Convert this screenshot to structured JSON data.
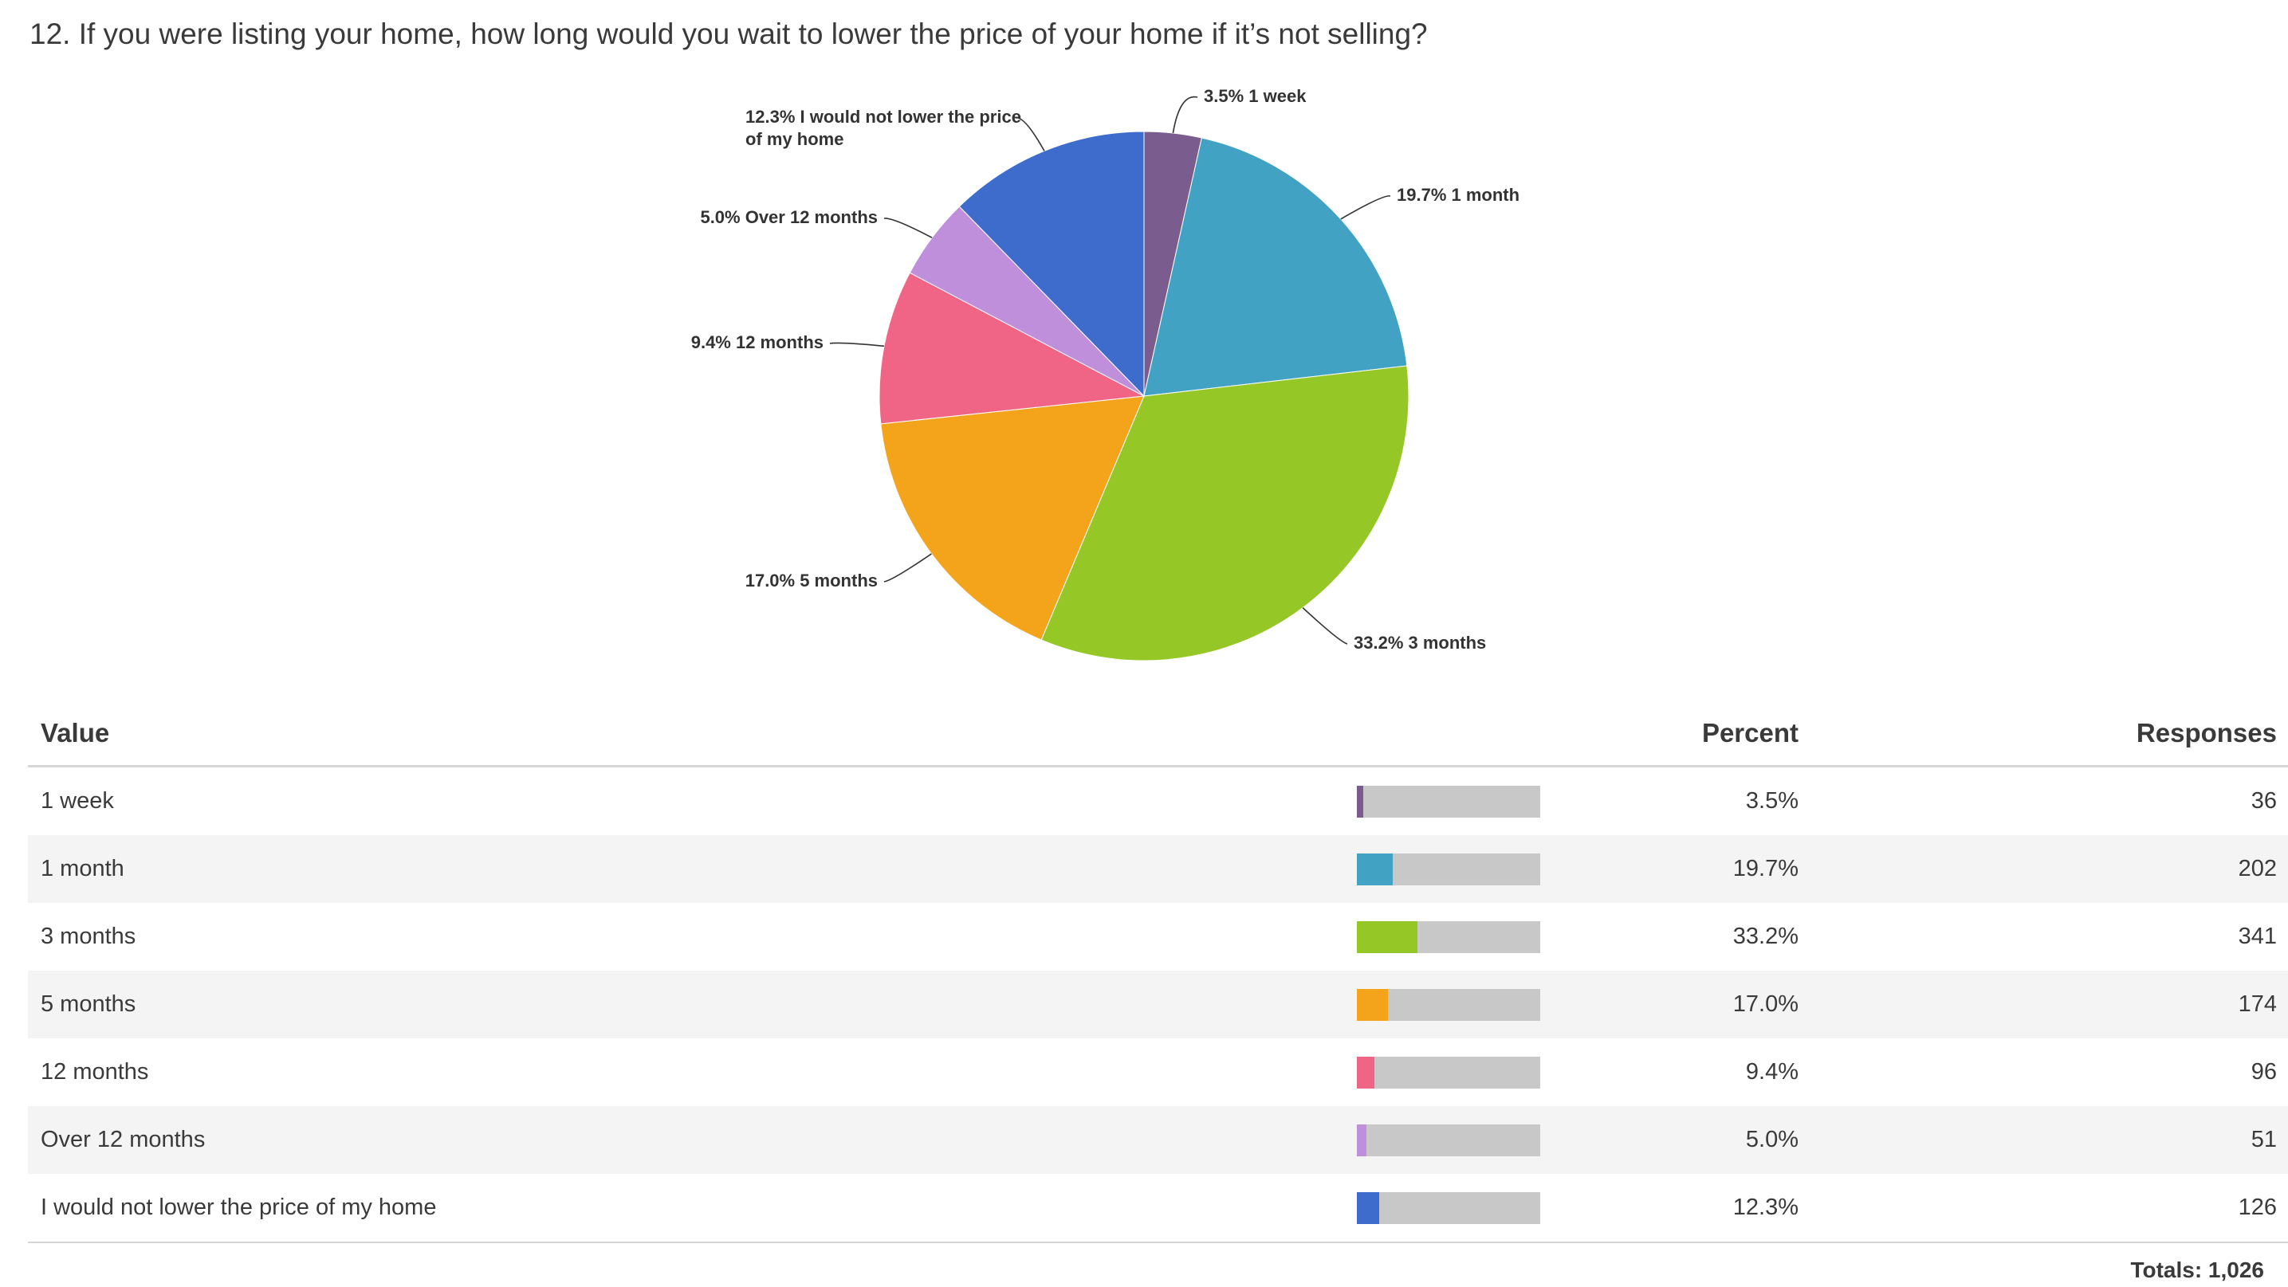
{
  "question": "12. If you were listing your home, how long would you wait to lower the price of your home if it’s not selling?",
  "chart_data": {
    "type": "pie",
    "title": "12. If you were listing your home, how long would you wait to lower the price of your home if it’s not selling?",
    "slices": [
      {
        "label": "1 week",
        "percent": 3.5,
        "responses": 36,
        "color": "#7a5d8e",
        "label_text": "3.5% 1 week"
      },
      {
        "label": "1 month",
        "percent": 19.7,
        "responses": 202,
        "color": "#41a2c4",
        "label_text": "19.7% 1 month"
      },
      {
        "label": "3 months",
        "percent": 33.2,
        "responses": 341,
        "color": "#95c826",
        "label_text": "33.2% 3 months"
      },
      {
        "label": "5 months",
        "percent": 17.0,
        "responses": 174,
        "color": "#f4a41b",
        "label_text": "17.0% 5 months"
      },
      {
        "label": "12 months",
        "percent": 9.4,
        "responses": 96,
        "color": "#f06586",
        "label_text": "9.4% 12 months"
      },
      {
        "label": "Over 12 months",
        "percent": 5.0,
        "responses": 51,
        "color": "#bf8fdb",
        "label_text": "5.0% Over 12 months"
      },
      {
        "label": "I would not lower the price of my home",
        "percent": 12.3,
        "responses": 126,
        "color": "#3d6ccc",
        "label_lines": [
          "12.3% I would not lower the price",
          "of my home"
        ]
      }
    ]
  },
  "table": {
    "headers": {
      "value": "Value",
      "percent": "Percent",
      "responses": "Responses"
    },
    "rows": [
      {
        "value": "1 week",
        "percent": "3.5%",
        "responses": "36",
        "fill": 0.035,
        "color": "#7a5d8e"
      },
      {
        "value": "1 month",
        "percent": "19.7%",
        "responses": "202",
        "fill": 0.197,
        "color": "#41a2c4"
      },
      {
        "value": "3 months",
        "percent": "33.2%",
        "responses": "341",
        "fill": 0.332,
        "color": "#95c826"
      },
      {
        "value": "5 months",
        "percent": "17.0%",
        "responses": "174",
        "fill": 0.17,
        "color": "#f4a41b"
      },
      {
        "value": "12 months",
        "percent": "9.4%",
        "responses": "96",
        "fill": 0.094,
        "color": "#f06586"
      },
      {
        "value": "Over 12 months",
        "percent": "5.0%",
        "responses": "51",
        "fill": 0.05,
        "color": "#bf8fdb"
      },
      {
        "value": "I would not lower the price of my home",
        "percent": "12.3%",
        "responses": "126",
        "fill": 0.123,
        "color": "#3d6ccc"
      }
    ],
    "totals": "Totals: 1,026"
  }
}
